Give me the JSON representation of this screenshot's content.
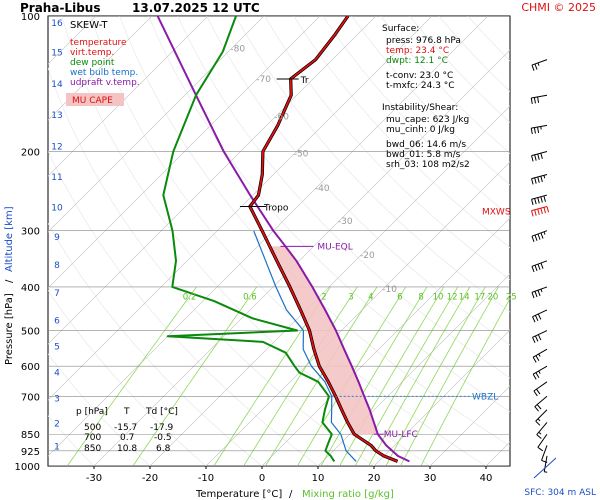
{
  "header": {
    "station": "Praha-Libus",
    "datetime": "13.07.2025 12 UTC",
    "credit": "CHMI © 2025"
  },
  "legend": {
    "title": "SKEW-T",
    "items": [
      {
        "label": "temperature",
        "color": "#e01010"
      },
      {
        "label": "virt.temp.",
        "color": "#e01010"
      },
      {
        "label": "dew point",
        "color": "#0a8a0a"
      },
      {
        "label": "wet bulb temp.",
        "color": "#1a70c8"
      },
      {
        "label": "udpraft v.temp.",
        "color": "#8a1aa8"
      }
    ],
    "cape_label": "MU CAPE"
  },
  "surface": {
    "title": "Surface:",
    "press": "press: 976.8 hPa",
    "temp": "temp: 23.4 °C",
    "dwpt": "dwpt: 12.1 °C",
    "tconv": "t-conv: 23.0 °C",
    "tmxfc": "t-mxfc: 24.3 °C"
  },
  "instability": {
    "title": "Instability/Shear:",
    "lines": [
      "mu_cape: 623 J/kg",
      "mu_cinh: 0 J/kg",
      "bwd_06: 14.6 m/s",
      "bwd_01: 5.8 m/s",
      "srh_03: 108 m2/s2"
    ]
  },
  "table": {
    "headers": [
      "p [hPa]",
      "T",
      "Td [°C]"
    ],
    "rows": [
      [
        "500",
        "-15.7",
        "-17.9"
      ],
      [
        "700",
        "0.7",
        "-0.5"
      ],
      [
        "850",
        "10.8",
        "6.8"
      ]
    ]
  },
  "annotations": {
    "tropo": "Tropo",
    "mu_eql": "MU-EQL",
    "mu_lfc": "MU-LFC",
    "wbzl": "WBZL",
    "mxws": "MXWS",
    "tr": "Tr"
  },
  "footer": {
    "sfc": "SFC: 304 m ASL"
  },
  "colors": {
    "temperature": "#e01010",
    "dewpoint": "#0a8a0a",
    "wetbulb": "#1a70c8",
    "parcel": "#8a1aa8",
    "cape_fill": "#f4c4c4",
    "mixing": "#8fd85a",
    "isotherm": "#cccccc",
    "isobar": "#888888"
  },
  "chart_data": {
    "type": "skew-t",
    "xlabel_temp": "Temperature [°C]",
    "xlabel_sep": "/",
    "xlabel_mix": "Mixing ratio [g/kg]",
    "ylabel_p": "Pressure [hPa]",
    "ylabel_sep": "/",
    "ylabel_alt": "Altitude [km]",
    "xticks": [
      -30,
      -20,
      -10,
      0,
      10,
      20,
      30,
      40
    ],
    "xlim": [
      -38,
      48
    ],
    "pressure_ticks": [
      100,
      200,
      300,
      400,
      500,
      600,
      700,
      850,
      925,
      1000
    ],
    "ylim_hpa": [
      1000,
      100
    ],
    "altitude_ticks": [
      {
        "km": "1",
        "p": 900
      },
      {
        "km": "2",
        "p": 800
      },
      {
        "km": "3",
        "p": 704
      },
      {
        "km": "4",
        "p": 617
      },
      {
        "km": "5",
        "p": 540
      },
      {
        "km": "6",
        "p": 472
      },
      {
        "km": "7",
        "p": 411
      },
      {
        "km": "8",
        "p": 356
      },
      {
        "km": "9",
        "p": 308
      },
      {
        "km": "10",
        "p": 265
      },
      {
        "km": "11",
        "p": 227
      },
      {
        "km": "12",
        "p": 194
      },
      {
        "km": "13",
        "p": 165
      },
      {
        "km": "14",
        "p": 141
      },
      {
        "km": "15",
        "p": 120
      },
      {
        "km": "16",
        "p": 103
      }
    ],
    "isotherm_labels": [
      -80,
      -70,
      -60,
      -50,
      -40,
      -30,
      -20,
      -10
    ],
    "mixing_ratio_labels": [
      "0.2",
      "0.6",
      "2",
      "3",
      "4",
      "6",
      "8",
      "10",
      "12",
      "14",
      "17",
      "20",
      "25"
    ],
    "mixing_ratio_values": [
      0.2,
      0.6,
      2,
      3,
      4,
      6,
      8,
      10,
      12,
      14,
      17,
      20,
      25
    ],
    "temperature": [
      {
        "p": 976.8,
        "t": 23.4
      },
      {
        "p": 950,
        "t": 20.0
      },
      {
        "p": 925,
        "t": 17.6
      },
      {
        "p": 900,
        "t": 15.8
      },
      {
        "p": 850,
        "t": 10.8
      },
      {
        "p": 800,
        "t": 7.5
      },
      {
        "p": 750,
        "t": 4.2
      },
      {
        "p": 700,
        "t": 0.7
      },
      {
        "p": 650,
        "t": -3.2
      },
      {
        "p": 600,
        "t": -7.6
      },
      {
        "p": 550,
        "t": -11.6
      },
      {
        "p": 500,
        "t": -15.7
      },
      {
        "p": 450,
        "t": -21.0
      },
      {
        "p": 400,
        "t": -27.0
      },
      {
        "p": 350,
        "t": -34.0
      },
      {
        "p": 300,
        "t": -42.0
      },
      {
        "p": 265,
        "t": -48.5
      },
      {
        "p": 250,
        "t": -49.0
      },
      {
        "p": 225,
        "t": -52.0
      },
      {
        "p": 200,
        "t": -56.0
      },
      {
        "p": 175,
        "t": -58.0
      },
      {
        "p": 150,
        "t": -61.0
      },
      {
        "p": 138,
        "t": -64.0
      },
      {
        "p": 125,
        "t": -63.0
      },
      {
        "p": 110,
        "t": -64.0
      },
      {
        "p": 100,
        "t": -65.0
      }
    ],
    "dewpoint": [
      {
        "p": 976.8,
        "t": 12.1
      },
      {
        "p": 950,
        "t": 10.5
      },
      {
        "p": 925,
        "t": 8.6
      },
      {
        "p": 900,
        "t": 8.0
      },
      {
        "p": 850,
        "t": 6.8
      },
      {
        "p": 800,
        "t": 3.0
      },
      {
        "p": 750,
        "t": 1.2
      },
      {
        "p": 700,
        "t": -0.5
      },
      {
        "p": 650,
        "t": -5.0
      },
      {
        "p": 620,
        "t": -10.0
      },
      {
        "p": 600,
        "t": -12.0
      },
      {
        "p": 560,
        "t": -16.0
      },
      {
        "p": 530,
        "t": -22.0
      },
      {
        "p": 515,
        "t": -40.0
      },
      {
        "p": 500,
        "t": -17.9
      },
      {
        "p": 470,
        "t": -28.0
      },
      {
        "p": 430,
        "t": -38.0
      },
      {
        "p": 400,
        "t": -48.0
      },
      {
        "p": 350,
        "t": -52.0
      },
      {
        "p": 300,
        "t": -58.0
      },
      {
        "p": 250,
        "t": -66.0
      },
      {
        "p": 200,
        "t": -72.0
      },
      {
        "p": 150,
        "t": -78.0
      },
      {
        "p": 120,
        "t": -81.0
      },
      {
        "p": 100,
        "t": -85.0
      }
    ],
    "wetbulb": [
      {
        "p": 976.8,
        "t": 16.0
      },
      {
        "p": 925,
        "t": 12.3
      },
      {
        "p": 850,
        "t": 8.4
      },
      {
        "p": 800,
        "t": 4.6
      },
      {
        "p": 750,
        "t": 2.4
      },
      {
        "p": 700,
        "t": 0.0
      },
      {
        "p": 650,
        "t": -3.8
      },
      {
        "p": 600,
        "t": -9.0
      },
      {
        "p": 550,
        "t": -13.5
      },
      {
        "p": 500,
        "t": -16.8
      },
      {
        "p": 450,
        "t": -23.5
      },
      {
        "p": 400,
        "t": -29.5
      },
      {
        "p": 350,
        "t": -36.0
      },
      {
        "p": 300,
        "t": -43.5
      }
    ],
    "parcel": [
      {
        "p": 976.8,
        "t": 25.5
      },
      {
        "p": 950,
        "t": 22.5
      },
      {
        "p": 900,
        "t": 18.5
      },
      {
        "p": 850,
        "t": 15.0
      },
      {
        "p": 800,
        "t": 12.2
      },
      {
        "p": 750,
        "t": 9.2
      },
      {
        "p": 700,
        "t": 5.8
      },
      {
        "p": 650,
        "t": 2.2
      },
      {
        "p": 600,
        "t": -1.8
      },
      {
        "p": 550,
        "t": -6.2
      },
      {
        "p": 500,
        "t": -11.0
      },
      {
        "p": 450,
        "t": -16.6
      },
      {
        "p": 400,
        "t": -23.0
      },
      {
        "p": 350,
        "t": -30.5
      },
      {
        "p": 320,
        "t": -36.0
      },
      {
        "p": 300,
        "t": -40.0
      },
      {
        "p": 250,
        "t": -50.5
      },
      {
        "p": 200,
        "t": -63.0
      },
      {
        "p": 150,
        "t": -78.0
      },
      {
        "p": 100,
        "t": -99.0
      }
    ],
    "levels": {
      "tropo_p": 265,
      "mu_eql_p": 325,
      "mu_lfc_p": 850,
      "wbzl_p": 700,
      "mxws_p": 265,
      "tr_p": 138
    },
    "wind_barbs": [
      {
        "p": 125,
        "dir": 250,
        "speed_kt": 25
      },
      {
        "p": 150,
        "dir": 260,
        "speed_kt": 30
      },
      {
        "p": 175,
        "dir": 260,
        "speed_kt": 35
      },
      {
        "p": 200,
        "dir": 255,
        "speed_kt": 40
      },
      {
        "p": 225,
        "dir": 255,
        "speed_kt": 45
      },
      {
        "p": 250,
        "dir": 255,
        "speed_kt": 50
      },
      {
        "p": 265,
        "dir": 255,
        "speed_kt": 60
      },
      {
        "p": 300,
        "dir": 250,
        "speed_kt": 45
      },
      {
        "p": 350,
        "dir": 250,
        "speed_kt": 40
      },
      {
        "p": 400,
        "dir": 250,
        "speed_kt": 35
      },
      {
        "p": 450,
        "dir": 245,
        "speed_kt": 30
      },
      {
        "p": 500,
        "dir": 245,
        "speed_kt": 30
      },
      {
        "p": 550,
        "dir": 240,
        "speed_kt": 25
      },
      {
        "p": 600,
        "dir": 240,
        "speed_kt": 25
      },
      {
        "p": 650,
        "dir": 235,
        "speed_kt": 20
      },
      {
        "p": 700,
        "dir": 230,
        "speed_kt": 20
      },
      {
        "p": 750,
        "dir": 225,
        "speed_kt": 15
      },
      {
        "p": 800,
        "dir": 220,
        "speed_kt": 15
      },
      {
        "p": 850,
        "dir": 215,
        "speed_kt": 10
      },
      {
        "p": 900,
        "dir": 200,
        "speed_kt": 10
      },
      {
        "p": 950,
        "dir": 190,
        "speed_kt": 5
      }
    ]
  }
}
